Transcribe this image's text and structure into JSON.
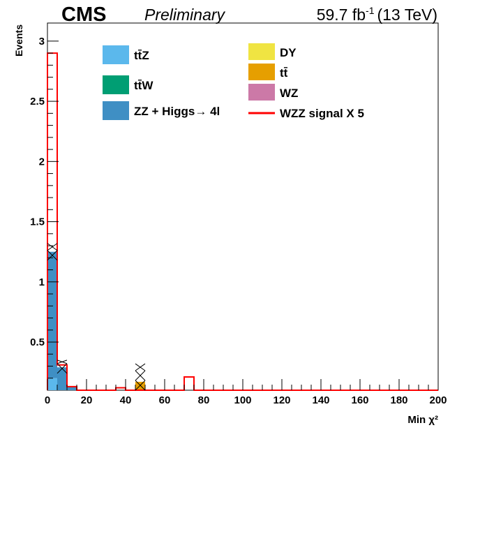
{
  "header": {
    "experiment": "CMS",
    "status": "Preliminary",
    "lumi": "59.7 fb",
    "lumi_exp": "-1",
    "energy": "(13 TeV)"
  },
  "chart_data": {
    "type": "bar",
    "stacked": true,
    "xlabel": "Min χ²",
    "ylabel": "Events",
    "xlim": [
      0,
      200
    ],
    "ylim": [
      0.1,
      3.15
    ],
    "xticks": [
      "0",
      "20",
      "40",
      "60",
      "80",
      "100",
      "120",
      "140",
      "160",
      "180",
      "200"
    ],
    "yticks": [
      "0.5",
      "1",
      "1.5",
      "2",
      "2.5",
      "3"
    ],
    "bin_width": 5,
    "legend_position": "top",
    "series": [
      {
        "name": "tt̄Z",
        "color": "#5bb8ec",
        "bins": [
          {
            "x0": 0,
            "x1": 5,
            "value": 0.2
          }
        ]
      },
      {
        "name": "tt̄W",
        "color": "#009e73",
        "bins": []
      },
      {
        "name": "ZZ + Higgs→ 4l",
        "color": "#3f8fc4",
        "bins": [
          {
            "x0": 0,
            "x1": 5,
            "value": 1.05
          },
          {
            "x0": 5,
            "x1": 10,
            "value": 0.29
          },
          {
            "x0": 10,
            "x1": 15,
            "value": 0.13
          },
          {
            "x0": 45,
            "x1": 50,
            "value": 0.04
          }
        ]
      },
      {
        "name": "DY",
        "color": "#f0e442",
        "bins": []
      },
      {
        "name": "tt̄",
        "color": "#e69f00",
        "bins": [
          {
            "x0": 45,
            "x1": 50,
            "value": 0.13
          }
        ]
      },
      {
        "name": "WZ",
        "color": "#cc79a7",
        "bins": []
      }
    ],
    "signal": {
      "name": "WZZ signal X 5",
      "color": "#ff0000",
      "bins": [
        {
          "x0": 0,
          "x1": 5,
          "value": 2.9
        },
        {
          "x0": 5,
          "x1": 10,
          "value": 0.31
        },
        {
          "x0": 10,
          "x1": 15,
          "value": 0.13
        },
        {
          "x0": 35,
          "x1": 40,
          "value": 0.12
        },
        {
          "x0": 70,
          "x1": 75,
          "value": 0.21
        }
      ]
    },
    "uncertainty": [
      {
        "x0": 0,
        "x1": 5,
        "low": 1.18,
        "high": 1.32
      },
      {
        "x0": 5,
        "x1": 10,
        "low": 0.24,
        "high": 0.35
      },
      {
        "x0": 45,
        "x1": 50,
        "low": 0.1,
        "high": 0.32
      }
    ]
  }
}
